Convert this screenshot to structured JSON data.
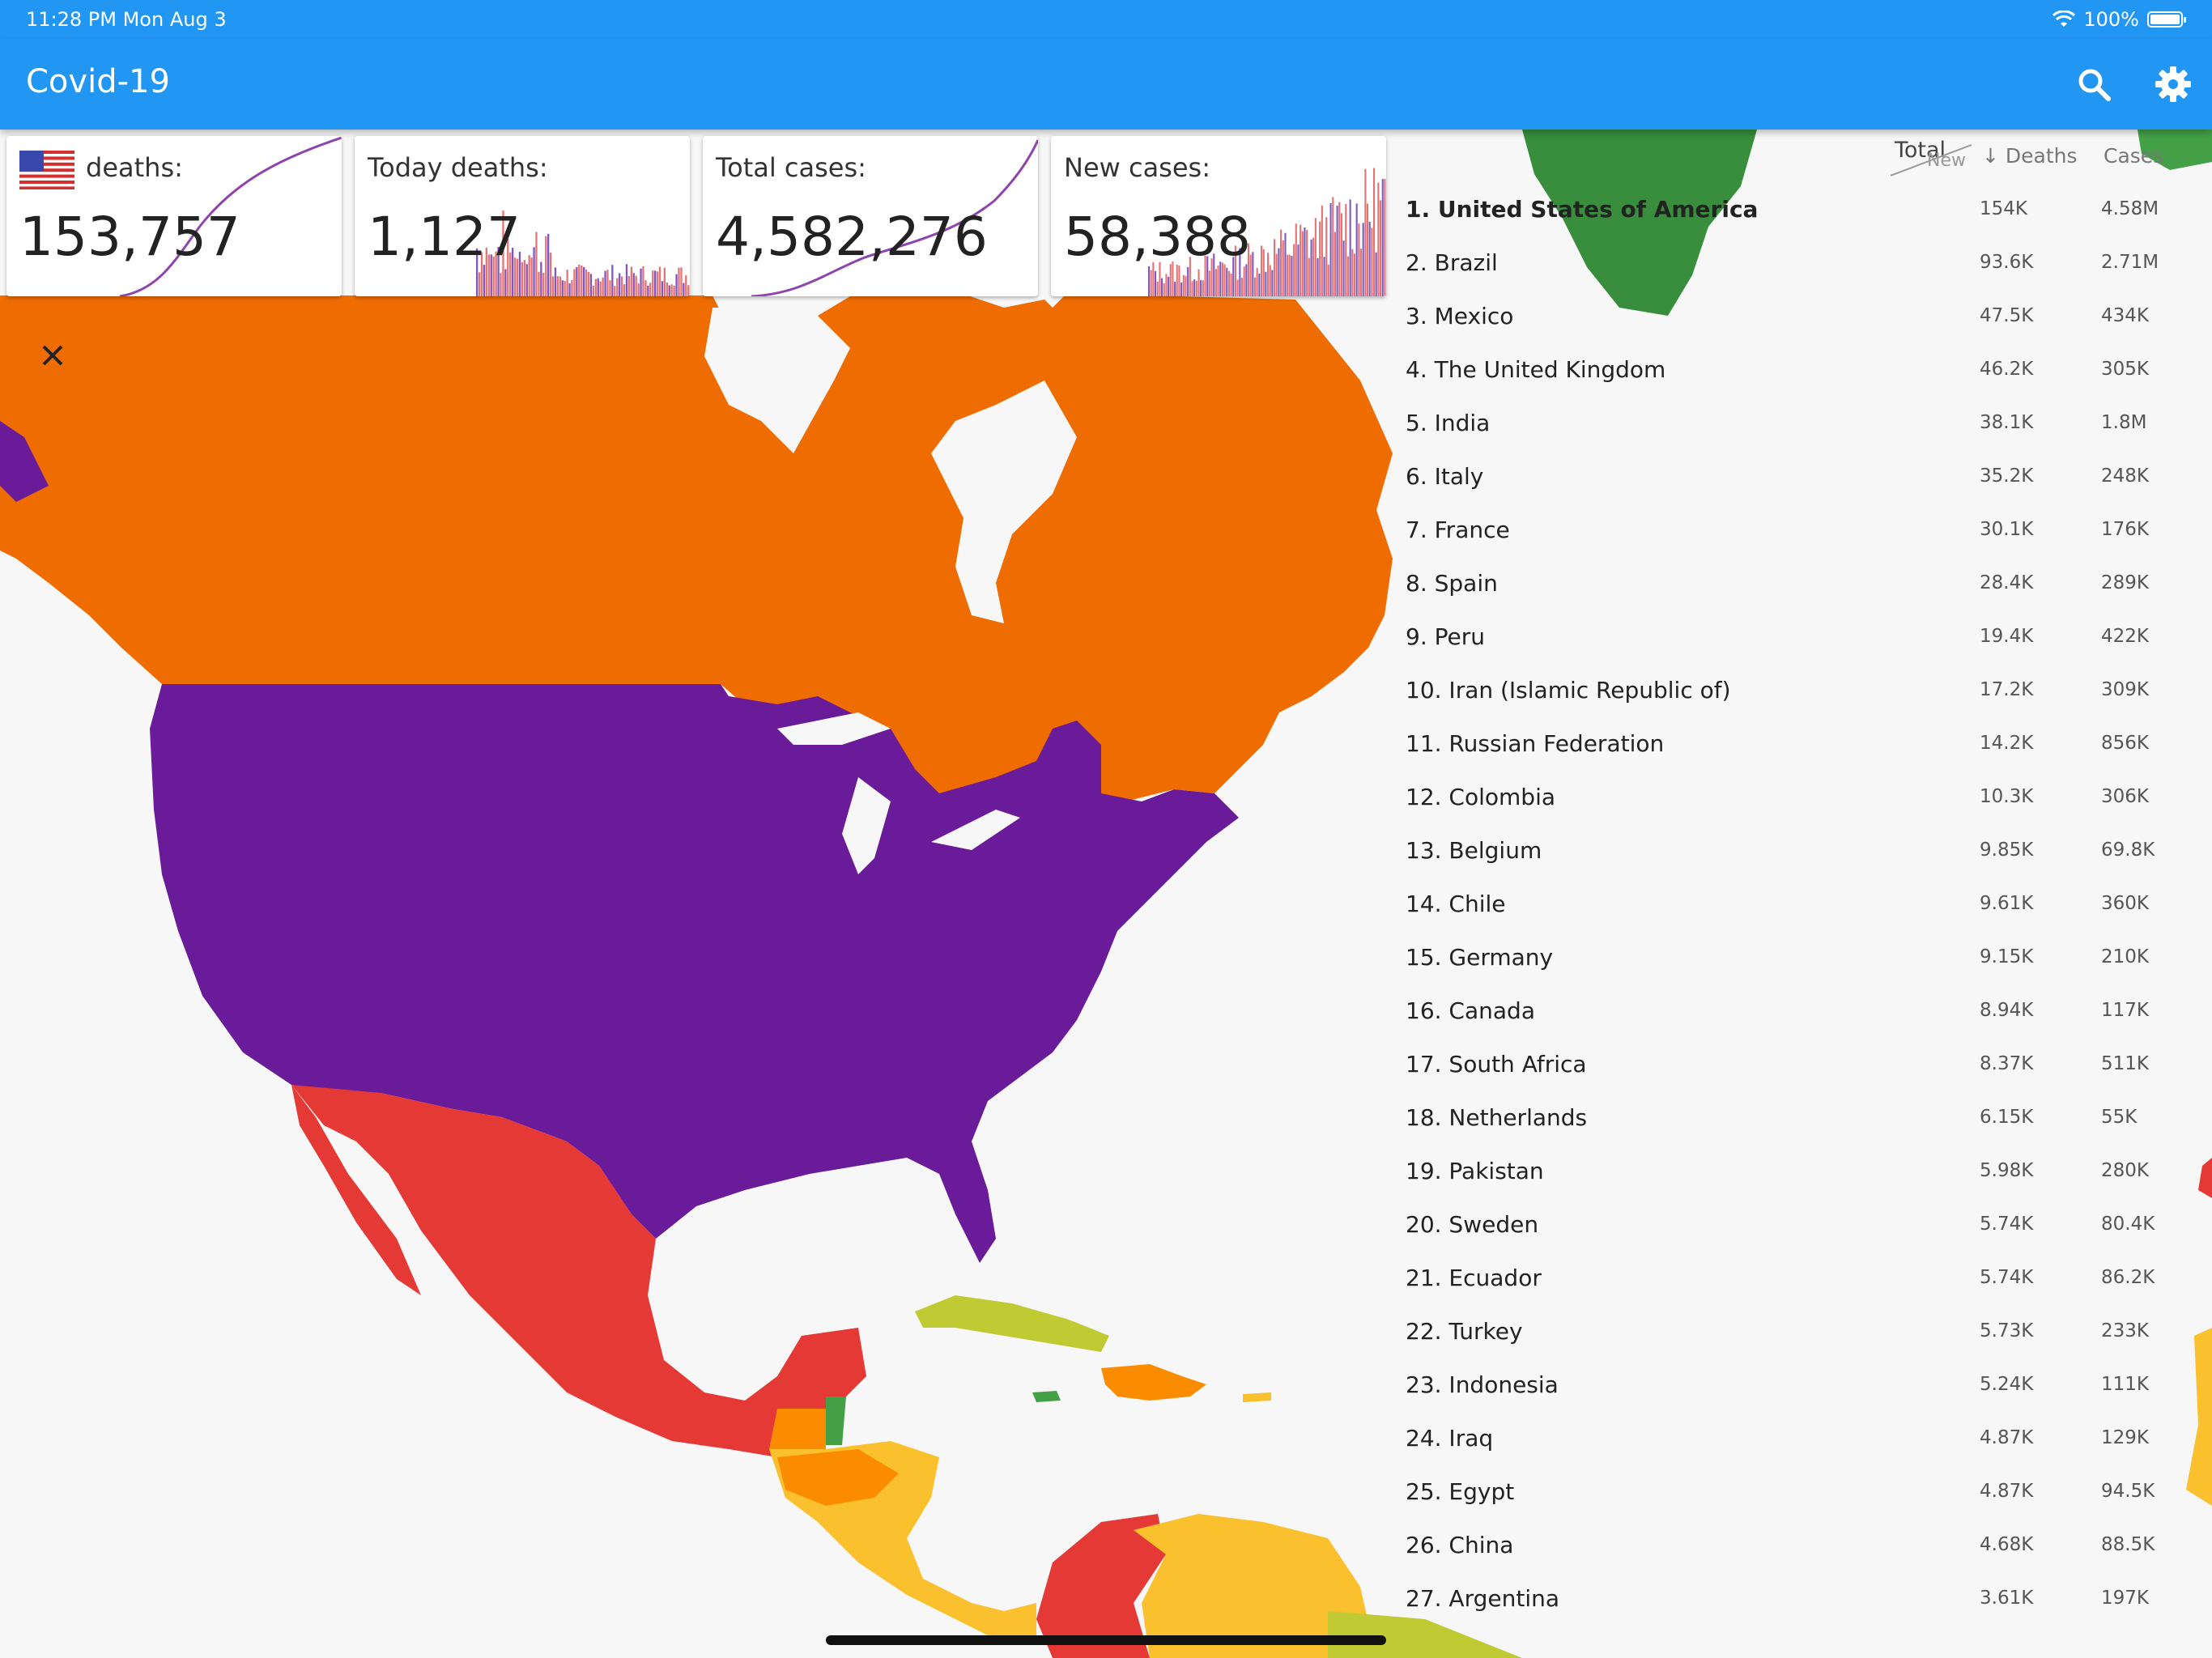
{
  "status_bar": {
    "time": "11:28 PM   Mon Aug 3",
    "battery": "100%"
  },
  "app_bar": {
    "title": "Covid-19",
    "search_icon": "search-icon",
    "settings_icon": "gear-icon"
  },
  "stats": {
    "deaths": {
      "label": "deaths:",
      "value": "153,757"
    },
    "today_deaths": {
      "label": "Today deaths:",
      "value": "1,127"
    },
    "total_cases": {
      "label": "Total cases:",
      "value": "4,582,276"
    },
    "new_cases": {
      "label": "New cases:",
      "value": "58,388"
    }
  },
  "table": {
    "header": {
      "total": "Total",
      "new": "New",
      "deaths": "↓ Deaths",
      "cases": "Cases"
    },
    "rows": [
      {
        "name": "1. United States of America",
        "deaths": "154K",
        "cases": "4.58M"
      },
      {
        "name": "2. Brazil",
        "deaths": "93.6K",
        "cases": "2.71M"
      },
      {
        "name": "3. Mexico",
        "deaths": "47.5K",
        "cases": "434K"
      },
      {
        "name": "4. The United Kingdom",
        "deaths": "46.2K",
        "cases": "305K"
      },
      {
        "name": "5. India",
        "deaths": "38.1K",
        "cases": "1.8M"
      },
      {
        "name": "6. Italy",
        "deaths": "35.2K",
        "cases": "248K"
      },
      {
        "name": "7. France",
        "deaths": "30.1K",
        "cases": "176K"
      },
      {
        "name": "8. Spain",
        "deaths": "28.4K",
        "cases": "289K"
      },
      {
        "name": "9. Peru",
        "deaths": "19.4K",
        "cases": "422K"
      },
      {
        "name": "10. Iran (Islamic Republic of)",
        "deaths": "17.2K",
        "cases": "309K"
      },
      {
        "name": "11. Russian Federation",
        "deaths": "14.2K",
        "cases": "856K"
      },
      {
        "name": "12. Colombia",
        "deaths": "10.3K",
        "cases": "306K"
      },
      {
        "name": "13. Belgium",
        "deaths": "9.85K",
        "cases": "69.8K"
      },
      {
        "name": "14. Chile",
        "deaths": "9.61K",
        "cases": "360K"
      },
      {
        "name": "15. Germany",
        "deaths": "9.15K",
        "cases": "210K"
      },
      {
        "name": "16. Canada",
        "deaths": "8.94K",
        "cases": "117K"
      },
      {
        "name": "17. South Africa",
        "deaths": "8.37K",
        "cases": "511K"
      },
      {
        "name": "18. Netherlands",
        "deaths": "6.15K",
        "cases": "55K"
      },
      {
        "name": "19. Pakistan",
        "deaths": "5.98K",
        "cases": "280K"
      },
      {
        "name": "20. Sweden",
        "deaths": "5.74K",
        "cases": "80.4K"
      },
      {
        "name": "21. Ecuador",
        "deaths": "5.74K",
        "cases": "86.2K"
      },
      {
        "name": "22. Turkey",
        "deaths": "5.73K",
        "cases": "233K"
      },
      {
        "name": "23. Indonesia",
        "deaths": "5.24K",
        "cases": "111K"
      },
      {
        "name": "24. Iraq",
        "deaths": "4.87K",
        "cases": "129K"
      },
      {
        "name": "25. Egypt",
        "deaths": "4.87K",
        "cases": "94.5K"
      },
      {
        "name": "26. China",
        "deaths": "4.68K",
        "cases": "88.5K"
      },
      {
        "name": "27. Argentina",
        "deaths": "3.61K",
        "cases": "197K"
      }
    ]
  },
  "colors": {
    "app_bar": "#2196f3",
    "usa": "#6a1b9a",
    "canada": "#ef6c00",
    "mexico": "#e53935",
    "central_america": "#fbc02d",
    "greenland": "#388e3c",
    "caribbean": "#c0ca33"
  }
}
